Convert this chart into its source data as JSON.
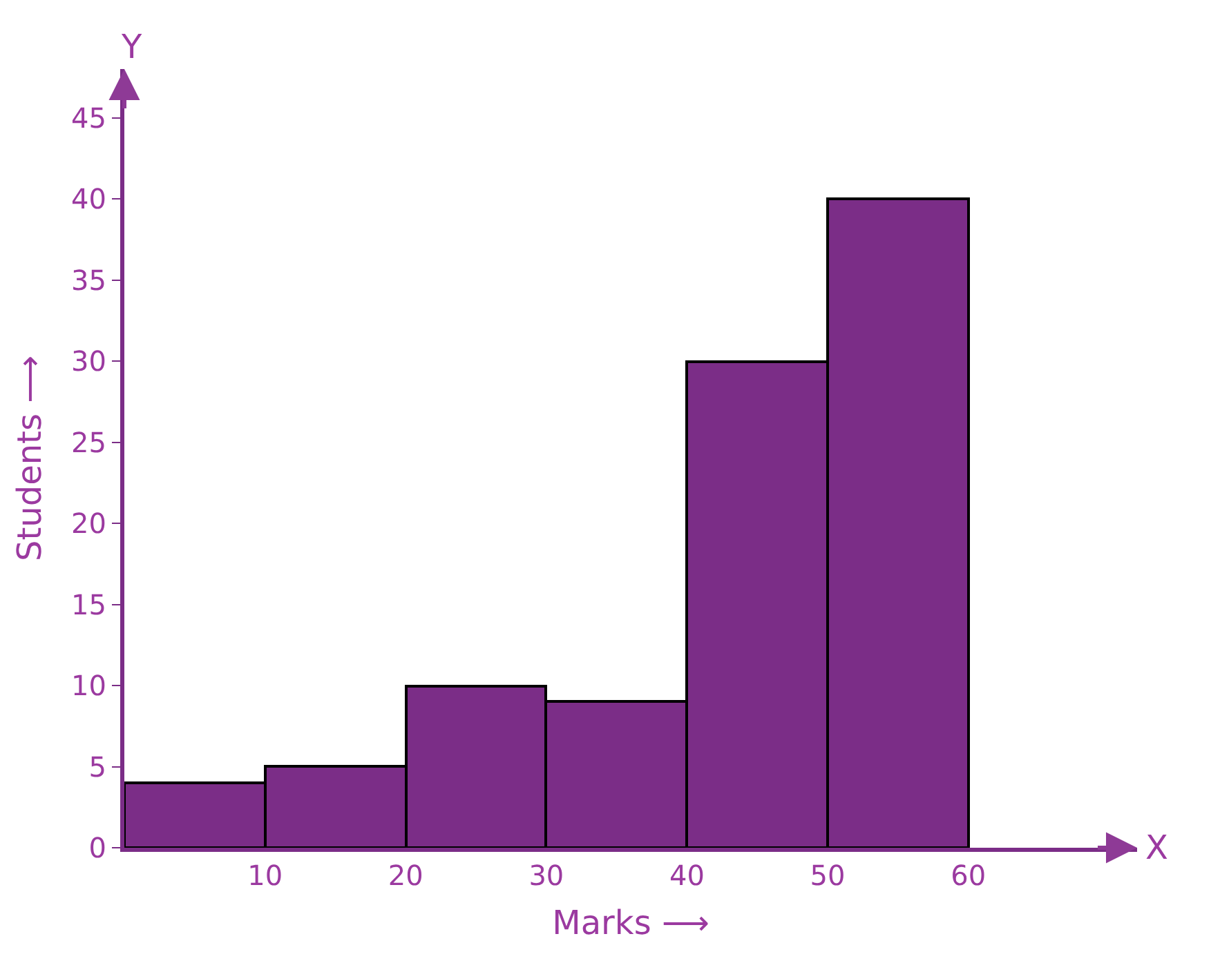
{
  "chart_data": {
    "type": "histogram",
    "bins": [
      0,
      10,
      20,
      30,
      40,
      50,
      60
    ],
    "values": [
      4,
      5,
      10,
      9,
      30,
      40
    ],
    "color": "#7b2d87",
    "xlabel": "Marks ⟶",
    "ylabel": "Students ⟶",
    "annotations": [
      "Y",
      "X"
    ],
    "xlim": [
      0,
      72
    ],
    "xticks": [
      10,
      20,
      30,
      40,
      50,
      60
    ],
    "ylim": [
      0,
      48
    ],
    "yticks": [
      0,
      5,
      10,
      15,
      20,
      25,
      30,
      35,
      40,
      45
    ]
  }
}
